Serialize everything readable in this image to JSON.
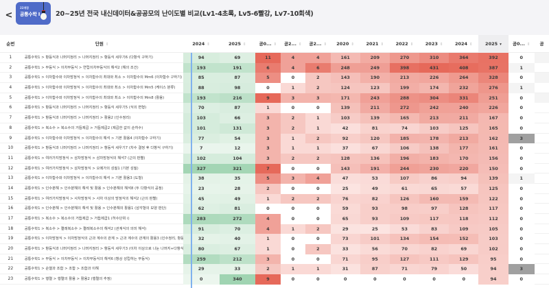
{
  "header": {
    "back_label": "<",
    "badge_small": "22개정",
    "badge_big": "공통수학 Ⅰ",
    "title": "20~25년 전국 내신데이터&공공모의 난이도별 비교(Lv1-4초록, Lv5-6빨강, Lv7-10회색)"
  },
  "table": {
    "columns": [
      "순번",
      "단원",
      "2024",
      "2025",
      "공0...",
      "공2...",
      "공2...",
      "2020",
      "2021",
      "2022",
      "2023",
      "2024",
      "2025",
      "공0...",
      "공"
    ],
    "sorted_column": "2025",
    "sort_indicator": "▾",
    "rows": [
      {
        "idx": "1",
        "unit": "공통수학1 > 항등식과 나머지정리 > 나머지정리 > 항등식 세우기6 (다항식 구하기)",
        "v": [
          94,
          69,
          11,
          4,
          4,
          161,
          209,
          270,
          310,
          364,
          392,
          0
        ]
      },
      {
        "idx": "2",
        "unit": "공통수학1 > 부등식 > 이차부등식 > 연립이차부등식의 해석2 (해의 조건)",
        "v": [
          193,
          191,
          6,
          4,
          6,
          248,
          249,
          398,
          431,
          408,
          387,
          1
        ]
      },
      {
        "idx": "3",
        "unit": "공통수학1 > 이차함수와 이차방정식 > 이차함수의 최대와 최소 > 이차함수의 Mm6 (이차함수 구하기)",
        "v": [
          85,
          87,
          5,
          0,
          2,
          143,
          190,
          213,
          226,
          264,
          328,
          0
        ]
      },
      {
        "idx": "4",
        "unit": "공통수학1 > 이차함수와 이차방정식 > 이차함수의 최대와 최소 > 이차함수의 Mm5 (케이스 분류)",
        "v": [
          88,
          98,
          0,
          1,
          2,
          124,
          123,
          199,
          174,
          232,
          276,
          1
        ]
      },
      {
        "idx": "5",
        "unit": "공통수학1 > 이차함수와 이차방정식 > 이차함수의 최대와 최소 > 이차함수의 Mm8 (활용)",
        "v": [
          193,
          216,
          9,
          3,
          3,
          171,
          243,
          288,
          304,
          331,
          251,
          0
        ]
      },
      {
        "idx": "6",
        "unit": "공통수학1 > 항등식과 나머지정리 > 나머지정리 > 항등식 세우기5 (식의 변형)",
        "v": [
          70,
          87,
          1,
          0,
          0,
          139,
          211,
          272,
          242,
          240,
          226,
          0
        ]
      },
      {
        "idx": "7",
        "unit": "공통수학1 > 항등식과 나머지정리 > 나머지정리 > 활용2 (인수정리)",
        "v": [
          103,
          66,
          3,
          2,
          1,
          103,
          139,
          165,
          213,
          211,
          167,
          0
        ]
      },
      {
        "idx": "8",
        "unit": "공통수학1 > 복소수 > 복소수의 거듭제곱 > 거듭제곱2 (제곱한 값이 순허수)",
        "v": [
          101,
          131,
          3,
          2,
          1,
          42,
          81,
          74,
          103,
          125,
          165,
          0
        ]
      },
      {
        "idx": "9",
        "unit": "공통수학1 > 이차함수와 이차방정식 > 이차함수의 해석 > 기본 활용4 (이차함수 구하기)",
        "v": [
          77,
          54,
          3,
          1,
          2,
          92,
          120,
          185,
          178,
          213,
          162,
          3
        ]
      },
      {
        "idx": "10",
        "unit": "공통수학1 > 항등식과 나머지정리 > 나머지정리 > 항등식 세우기7 (차수 결정 후 다항식 구하기)",
        "v": [
          7,
          12,
          3,
          1,
          1,
          37,
          67,
          106,
          138,
          177,
          161,
          0
        ]
      },
      {
        "idx": "11",
        "unit": "공통수학1 > 여러가지방정식 > 삼차방정식 > 삼차방정식의 해석7 (근의 판별)",
        "v": [
          102,
          104,
          3,
          2,
          2,
          128,
          136,
          196,
          183,
          170,
          156,
          0
        ]
      },
      {
        "idx": "12",
        "unit": "공통수학1 > 여러가지방정식 > 삼차방정식 > 오메가의 성질1 (기본 성질)",
        "v": [
          327,
          321,
          7,
          0,
          0,
          143,
          191,
          244,
          230,
          220,
          150,
          0
        ]
      },
      {
        "idx": "13",
        "unit": "공통수학1 > 이차함수와 이차방정식 > 이차함수의 해석 > 기본 활용3 (도형)",
        "v": [
          38,
          35,
          5,
          3,
          4,
          47,
          53,
          107,
          86,
          94,
          139,
          1
        ]
      },
      {
        "idx": "14",
        "unit": "공통수학1 > 인수분해 > 인수분해의 해석 및 활용 > 인수분해의 해석8 (두 다항식의 공정)",
        "v": [
          23,
          28,
          2,
          0,
          0,
          25,
          49,
          61,
          65,
          57,
          125,
          0
        ]
      },
      {
        "idx": "15",
        "unit": "공통수학1 > 여러가지방정식 > 사차방정식 > 사차 이상의 방정식의 해석2 (근의 판별)",
        "v": [
          45,
          49,
          1,
          2,
          2,
          76,
          82,
          126,
          160,
          159,
          122,
          0
        ]
      },
      {
        "idx": "16",
        "unit": "공통수학1 > 인수분해 > 인수분해의 해석 및 활용 > 인수분해의 활용1 (삼각형의 모양 판단)",
        "v": [
          62,
          81,
          0,
          0,
          0,
          59,
          93,
          98,
          97,
          128,
          117,
          0
        ]
      },
      {
        "idx": "17",
        "unit": "공통수학1 > 복소수 > 복소수의 거듭제곱 > 거듭제곱1 (허수단위 i)",
        "v": [
          283,
          272,
          4,
          0,
          0,
          65,
          93,
          109,
          117,
          118,
          112,
          0
        ]
      },
      {
        "idx": "18",
        "unit": "공통수학1 > 복소수 > 켤레복소수 > 켤레복소수의 해석2 (관계식의 의미 해석)",
        "v": [
          91,
          70,
          4,
          1,
          2,
          29,
          25,
          53,
          83,
          109,
          105,
          0
        ]
      },
      {
        "idx": "19",
        "unit": "공통수학1 > 이차방정식 > 이차방정식의 근과 계수의 관계 > 근과 계수의 관계의 활용3 (인수정리, 항등식 구하기)",
        "v": [
          32,
          40,
          1,
          0,
          0,
          73,
          101,
          134,
          154,
          152,
          103,
          0
        ]
      },
      {
        "idx": "20",
        "unit": "공통수학1 > 항등식과 나머지정리 > 나머지정리 > 항등식 세우기3 (이차 이상으로 나눈 나머지+다항식의 결정)",
        "v": [
          80,
          67,
          1,
          0,
          2,
          33,
          56,
          70,
          82,
          69,
          102,
          0
        ]
      },
      {
        "idx": "21",
        "unit": "공통수학1 > 부등식 > 이차부등식 > 이차부등식의 해석6 (항상 성립하는 부등식)",
        "v": [
          259,
          212,
          3,
          0,
          0,
          71,
          95,
          127,
          111,
          129,
          95,
          0
        ]
      },
      {
        "idx": "22",
        "unit": "공통수학1 > 순열과 조합 > 조합 > 조합과 이해",
        "v": [
          29,
          33,
          2,
          1,
          1,
          31,
          87,
          71,
          79,
          50,
          94,
          3
        ]
      },
      {
        "idx": "23",
        "unit": "공통수학1 > 행렬 > 행렬의 활용 > 활용2 (행렬의 추정)",
        "v": [
          0,
          340,
          9,
          0,
          0,
          0,
          0,
          0,
          0,
          0,
          94,
          0
        ]
      }
    ]
  }
}
